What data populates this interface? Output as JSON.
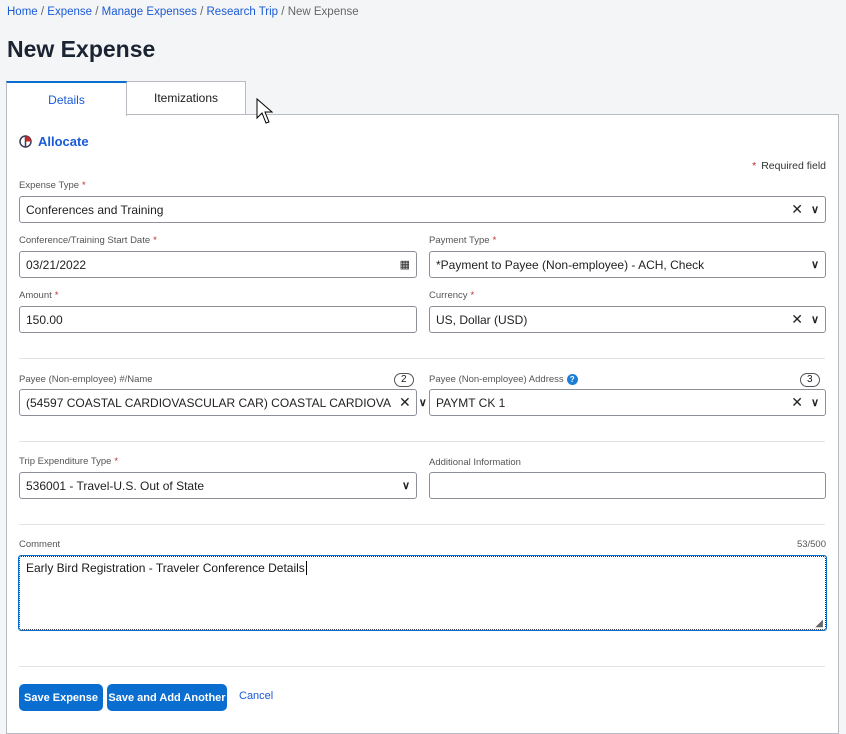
{
  "breadcrumb": {
    "items": [
      "Home",
      "Expense",
      "Manage Expenses",
      "Research Trip"
    ],
    "current": "New Expense"
  },
  "page_title": "New Expense",
  "tabs": [
    {
      "label": "Details",
      "active": true
    },
    {
      "label": "Itemizations",
      "active": false
    }
  ],
  "allocate_label": "Allocate",
  "required_note": "Required field",
  "fields": {
    "expense_type": {
      "label": "Expense Type",
      "value": "Conferences and Training"
    },
    "start_date": {
      "label": "Conference/Training Start Date",
      "value": "03/21/2022"
    },
    "payment_type": {
      "label": "Payment Type",
      "value": "*Payment to Payee (Non-employee) - ACH, Check"
    },
    "amount": {
      "label": "Amount",
      "value": "150.00"
    },
    "currency": {
      "label": "Currency",
      "value": "US, Dollar (USD)"
    },
    "payee": {
      "label": "Payee (Non-employee) #/Name",
      "value": "(54597 COASTAL CARDIOVASCULAR CAR) COASTAL CARDIOVA",
      "count": "2"
    },
    "payee_address": {
      "label": "Payee (Non-employee) Address",
      "value": "PAYMT CK 1",
      "count": "3"
    },
    "trip_type": {
      "label": "Trip Expenditure Type",
      "value": "536001 - Travel-U.S. Out of State"
    },
    "additional_info": {
      "label": "Additional Information",
      "value": ""
    },
    "comment": {
      "label": "Comment",
      "value": "Early Bird Registration - Traveler Conference Details",
      "counter": "53/500"
    }
  },
  "buttons": {
    "save": "Save Expense",
    "save_add": "Save and Add Another",
    "cancel": "Cancel"
  },
  "colors": {
    "accent": "#0a6ed1",
    "required": "#c02b2b"
  }
}
